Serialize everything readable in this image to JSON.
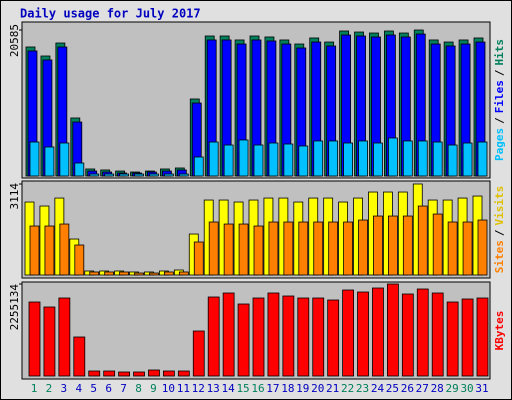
{
  "chart_data": [
    {
      "type": "bar",
      "title": "Daily usage for July 2017",
      "ylim": [
        0,
        20585
      ],
      "yticks": [
        20585
      ],
      "legend_separator": "/",
      "series": [
        {
          "name": "Pages",
          "color": "#00c0ff",
          "values": [
            4790,
            4090,
            4650,
            1830,
            280,
            280,
            280,
            280,
            280,
            280,
            280,
            2680,
            4790,
            4370,
            5080,
            4370,
            4650,
            4510,
            4230,
            4940,
            4940,
            4650,
            4940,
            4650,
            5360,
            4940,
            4940,
            4790,
            4370,
            4650,
            4790
          ]
        },
        {
          "name": "Files",
          "color": "#0000ff",
          "values": [
            17630,
            16360,
            18190,
            7610,
            700,
            560,
            420,
            420,
            560,
            700,
            850,
            10290,
            19180,
            19180,
            18610,
            19180,
            19040,
            18610,
            18050,
            18890,
            18330,
            19880,
            19740,
            19600,
            19880,
            19600,
            20020,
            18610,
            18330,
            18610,
            18890
          ]
        },
        {
          "name": "Hits",
          "color": "#00805c",
          "values": [
            18190,
            16920,
            18750,
            8180,
            990,
            850,
            700,
            560,
            700,
            990,
            1130,
            10860,
            19740,
            19740,
            19180,
            19740,
            19600,
            19180,
            18610,
            19460,
            18890,
            20445,
            20300,
            20160,
            20445,
            20160,
            20585,
            19180,
            18890,
            19180,
            19460
          ]
        }
      ]
    },
    {
      "type": "bar",
      "ylim": [
        0,
        3114
      ],
      "yticks": [
        3114
      ],
      "legend_separator": "/",
      "series": [
        {
          "name": "Sites",
          "color": "#ff8000",
          "values": [
            1676,
            1676,
            1744,
            1026,
            103,
            103,
            103,
            68,
            68,
            103,
            103,
            1129,
            1813,
            1744,
            1744,
            1676,
            1813,
            1813,
            1813,
            1813,
            1813,
            1813,
            1881,
            2018,
            2018,
            2018,
            2360,
            2086,
            1813,
            1813,
            1881
          ]
        },
        {
          "name": "Visits",
          "color": "#ffff00",
          "values": [
            2497,
            2360,
            2633,
            1231,
            137,
            137,
            137,
            103,
            103,
            137,
            171,
            1402,
            2565,
            2565,
            2497,
            2565,
            2633,
            2633,
            2497,
            2633,
            2633,
            2497,
            2633,
            2839,
            2839,
            2839,
            3114,
            2565,
            2565,
            2633,
            2702
          ]
        }
      ]
    },
    {
      "type": "bar",
      "ylim": [
        0,
        2255134
      ],
      "yticks": [
        2255134
      ],
      "categories": [
        "1",
        "2",
        "3",
        "4",
        "5",
        "6",
        "7",
        "8",
        "9",
        "10",
        "11",
        "12",
        "13",
        "14",
        "15",
        "16",
        "17",
        "18",
        "19",
        "20",
        "21",
        "22",
        "23",
        "24",
        "25",
        "26",
        "27",
        "28",
        "29",
        "30",
        "31"
      ],
      "category_colors": [
        "#00805c",
        "#00805c",
        "#0000c0",
        "#0000c0",
        "#0000c0",
        "#0000c0",
        "#0000c0",
        "#00805c",
        "#00805c",
        "#0000c0",
        "#0000c0",
        "#0000c0",
        "#0000c0",
        "#0000c0",
        "#00805c",
        "#00805c",
        "#0000c0",
        "#0000c0",
        "#0000c0",
        "#0000c0",
        "#0000c0",
        "#00805c",
        "#00805c",
        "#0000c0",
        "#0000c0",
        "#0000c0",
        "#0000c0",
        "#0000c0",
        "#00805c",
        "#00805c",
        "#0000c0"
      ],
      "series": [
        {
          "name": "KBytes",
          "color": "#ff0000",
          "values": [
            1813890,
            1691330,
            1911940,
            955970,
            122560,
            122560,
            98050,
            98050,
            147070,
            122560,
            122560,
            1103040,
            1936450,
            2034500,
            1764860,
            1911940,
            2034500,
            1960960,
            1911940,
            1911940,
            1862910,
            2108030,
            2059010,
            2157060,
            2255134,
            2009980,
            2132540,
            2034500,
            1813890,
            1887420,
            1911940
          ]
        }
      ]
    }
  ]
}
